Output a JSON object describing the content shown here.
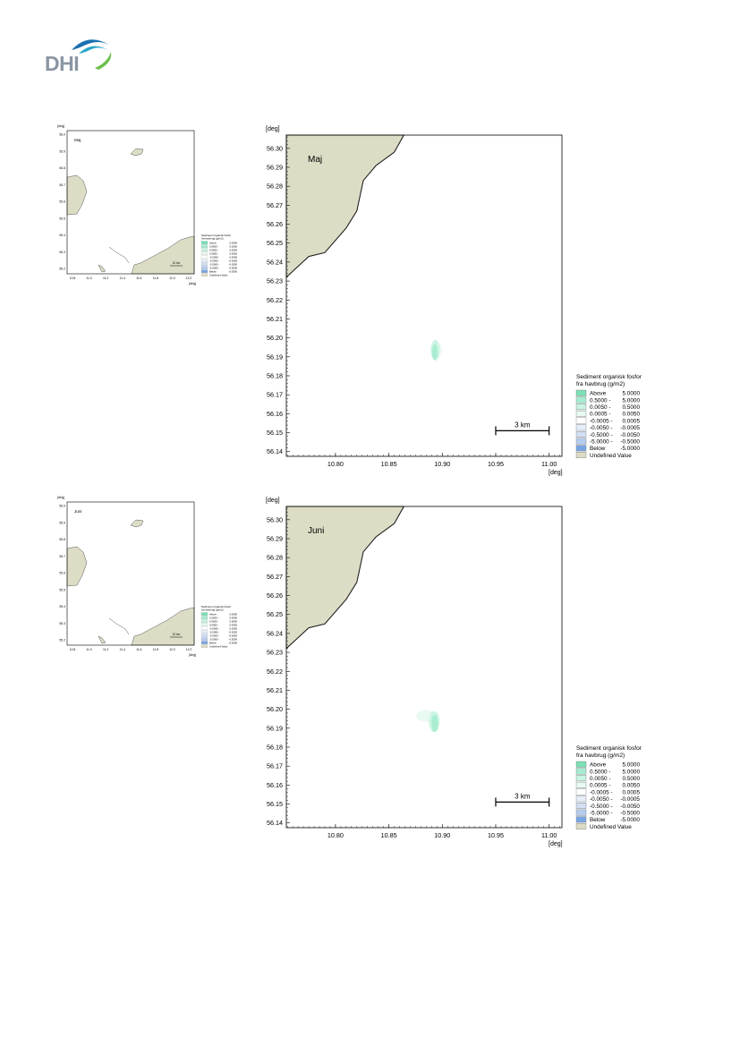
{
  "brand": {
    "name": "DHI",
    "colors": [
      "#1a6fb0",
      "#2aa7c8",
      "#6cc04a"
    ]
  },
  "colors": {
    "land": "#ddddc6",
    "legend": [
      "#7be0b6",
      "#a6ecd0",
      "#c9f4e2",
      "#e8faf2",
      "#ffffff",
      "#e6eef9",
      "#d2dff4",
      "#b6ccef",
      "#9dbbea",
      "#7aa5e3",
      "#ddddc6"
    ]
  },
  "shared": {
    "x_unit": "[deg]",
    "y_unit": "[deg]",
    "legend_title_line1": "Sediment organisk fosfor",
    "legend_title_line2": "fra havbrug (g/m2)",
    "legend_items": [
      {
        "label": "Above",
        "value": "5.0000",
        "color": "#7be0b6"
      },
      {
        "label": "0.5000 -",
        "value": "5.0000",
        "color": "#a6ecd0"
      },
      {
        "label": "0.0050 -",
        "value": "0.5000",
        "color": "#c9f4e2"
      },
      {
        "label": "0.0005 -",
        "value": "0.0050",
        "color": "#e8faf2"
      },
      {
        "label": "-0.0005 -",
        "value": "0.0005",
        "color": "#ffffff"
      },
      {
        "label": "-0.0050 -",
        "value": "-0.0005",
        "color": "#e6eef9"
      },
      {
        "label": "-0.5000 -",
        "value": "-0.0050",
        "color": "#d2dff4"
      },
      {
        "label": "-5.0000 -",
        "value": "-0.5000",
        "color": "#b6ccef"
      },
      {
        "label": "Below",
        "value": "-5.0000",
        "color": "#7aa5e3"
      },
      {
        "label": "Undefined Value",
        "value": "",
        "color": "#ddddc6"
      }
    ],
    "scale_bar_label": "3 km",
    "mini_scale_bar_label": "10 km"
  },
  "chart_data": [
    {
      "type": "heatmap",
      "title": "Maj",
      "xlabel": "[deg]",
      "ylabel": "[deg]",
      "x_ticks": [
        "10.80",
        "10.85",
        "10.90",
        "10.95",
        "11.00"
      ],
      "y_ticks": [
        "56.14",
        "56.15",
        "56.16",
        "56.17",
        "56.18",
        "56.19",
        "56.20",
        "56.21",
        "56.22",
        "56.23",
        "56.24",
        "56.25",
        "56.26",
        "56.27",
        "56.28",
        "56.29",
        "56.30"
      ],
      "xlim": [
        10.754,
        11.012
      ],
      "ylim": [
        56.1375,
        56.307
      ],
      "coastline": [
        [
          10.754,
          56.232
        ],
        [
          10.775,
          56.243
        ],
        [
          10.79,
          56.245
        ],
        [
          10.81,
          56.258
        ],
        [
          10.82,
          56.267
        ],
        [
          10.826,
          56.283
        ],
        [
          10.838,
          56.291
        ],
        [
          10.855,
          56.298
        ],
        [
          10.864,
          56.307
        ]
      ],
      "plume": [
        {
          "x": 10.894,
          "y": 56.1935,
          "rx": 0.0055,
          "ry": 0.0045,
          "level": "0.0005 - 0.0050"
        },
        {
          "x": 10.8935,
          "y": 56.1935,
          "rx": 0.004,
          "ry": 0.0055,
          "level": "0.0050 - 0.5000"
        },
        {
          "x": 10.893,
          "y": 56.1925,
          "rx": 0.0025,
          "ry": 0.004,
          "level": "0.5000 - 5.0000"
        }
      ]
    },
    {
      "type": "heatmap",
      "title": "Juni",
      "xlabel": "[deg]",
      "ylabel": "[deg]",
      "x_ticks": [
        "10.80",
        "10.85",
        "10.90",
        "10.95",
        "11.00"
      ],
      "y_ticks": [
        "56.14",
        "56.15",
        "56.16",
        "56.17",
        "56.18",
        "56.19",
        "56.20",
        "56.21",
        "56.22",
        "56.23",
        "56.24",
        "56.25",
        "56.26",
        "56.27",
        "56.28",
        "56.29",
        "56.30"
      ],
      "xlim": [
        10.754,
        11.012
      ],
      "ylim": [
        56.1375,
        56.307
      ],
      "coastline": [
        [
          10.754,
          56.232
        ],
        [
          10.775,
          56.243
        ],
        [
          10.79,
          56.245
        ],
        [
          10.81,
          56.258
        ],
        [
          10.82,
          56.267
        ],
        [
          10.826,
          56.283
        ],
        [
          10.838,
          56.291
        ],
        [
          10.855,
          56.298
        ],
        [
          10.864,
          56.307
        ]
      ],
      "plume": [
        {
          "x": 10.8845,
          "y": 56.1965,
          "rx": 0.009,
          "ry": 0.003,
          "level": "0.0005 - 0.0050"
        },
        {
          "x": 10.8925,
          "y": 56.1935,
          "rx": 0.005,
          "ry": 0.0055,
          "level": "0.0050 - 0.5000"
        },
        {
          "x": 10.893,
          "y": 56.1925,
          "rx": 0.003,
          "ry": 0.0045,
          "level": "0.5000 - 5.0000"
        }
      ]
    }
  ],
  "minimaps": [
    {
      "title": "Maj",
      "y_ticks": [
        "56.0",
        "55.9",
        "55.8",
        "55.7",
        "55.6",
        "55.5",
        "55.4",
        "55.3",
        "55.2"
      ],
      "x_ticks": [
        "10.8",
        "11.0",
        "11.2",
        "11.4",
        "11.6",
        "11.8",
        "12.0",
        "12.2"
      ],
      "x_unit": "[deg]",
      "y_unit": "[deg]"
    },
    {
      "title": "Juni",
      "y_ticks": [
        "56.0",
        "55.9",
        "55.8",
        "55.7",
        "55.6",
        "55.5",
        "55.4",
        "55.3",
        "55.2"
      ],
      "x_ticks": [
        "10.8",
        "11.0",
        "11.2",
        "11.4",
        "11.6",
        "11.8",
        "12.0",
        "12.2"
      ],
      "x_unit": "[deg]",
      "y_unit": "[deg]"
    }
  ]
}
